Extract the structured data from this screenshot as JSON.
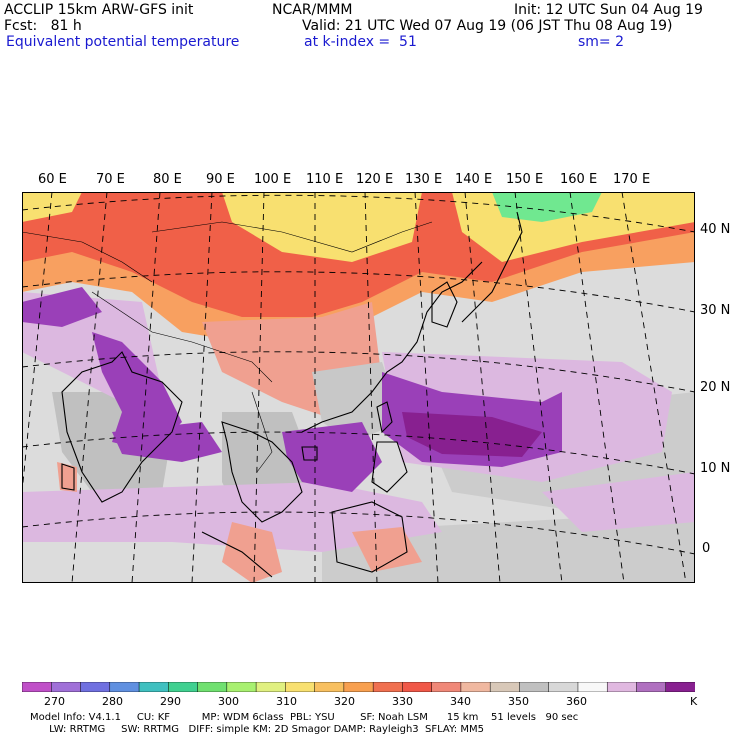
{
  "header": {
    "model": "ACCLIP 15km ARW-GFS init",
    "org": "NCAR/MMM",
    "init": "Init: 12 UTC Sun 04 Aug 19",
    "fcst": "Fcst:   81 h",
    "valid": "Valid: 21 UTC Wed 07 Aug 19 (06 JST Thu 08 Aug 19)",
    "field": "Equivalent potential temperature",
    "level": "at k-index =  51",
    "smooth": "sm= 2"
  },
  "longitude_labels": [
    "60 E",
    "70 E",
    "80 E",
    "90 E",
    "100 E",
    "110 E",
    "120 E",
    "130 E",
    "140 E",
    "150 E",
    "160 E",
    "170 E"
  ],
  "latitude_labels": [
    "40 N",
    "30 N",
    "20 N",
    "10 N",
    "0"
  ],
  "colorbar": {
    "unit": "K",
    "ticks": [
      "270",
      "280",
      "290",
      "300",
      "310",
      "320",
      "330",
      "340",
      "350",
      "360"
    ],
    "colors": [
      "#c050c8",
      "#a070d8",
      "#7070e0",
      "#6090e0",
      "#40c0c0",
      "#40d090",
      "#70e070",
      "#a8f070",
      "#e0f080",
      "#f8e070",
      "#f8c060",
      "#f8a050",
      "#f07050",
      "#f05848",
      "#f08878",
      "#f0b8a0",
      "#d8c8b8",
      "#c0c0c0",
      "#d8d8d8",
      "#f8f8f8",
      "#e0b8e0",
      "#b070c0",
      "#882090"
    ]
  },
  "footer": {
    "line1": "Model Info: V4.1.1     CU: KF          MP: WDM 6class  PBL: YSU        SF: Noah LSM      15 km    51 levels   90 sec",
    "line2": "      LW: RRTMG     SW: RRTMG   DIFF: simple KM: 2D Smagor DAMP: Rayleigh3  SFLAY: MM5"
  },
  "map_colors": {
    "warm_red": "#f06048",
    "orange": "#f8a060",
    "salmon": "#f0a090",
    "yellow": "#f8e070",
    "green": "#70e890",
    "gray": "#c8c8c8",
    "light_gray": "#dcdcdc",
    "lavender": "#dcb8e0",
    "purple": "#9a40b8",
    "dark_purple": "#882090"
  }
}
